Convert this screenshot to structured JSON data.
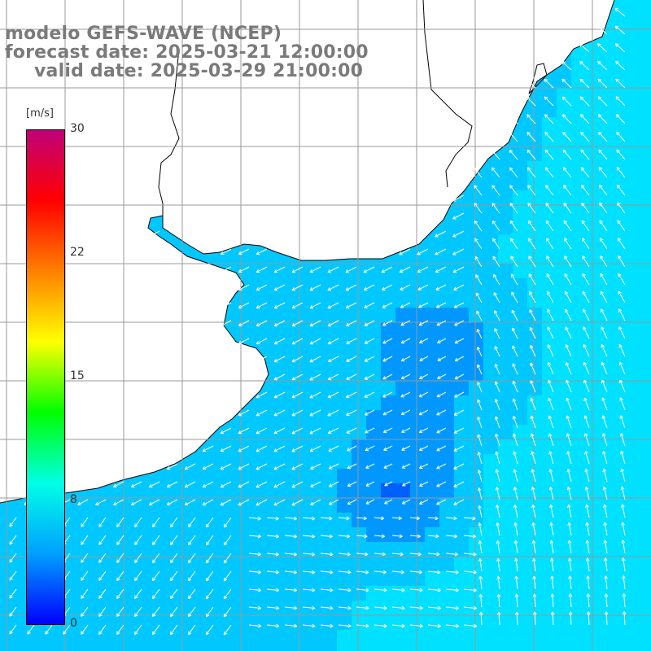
{
  "title": {
    "line1": "modelo GEFS-WAVE (NCEP)",
    "line2": "forecast date: 2025-03-21 12:00:00",
    "line3": "valid date: 2025-03-29 21:00:00"
  },
  "legend": {
    "unit": "[m/s]",
    "ticks": [
      "30",
      "22",
      "15",
      "8",
      "0"
    ],
    "tick_values": [
      30,
      22,
      15,
      8,
      0
    ],
    "range": [
      0,
      30
    ],
    "colors": [
      "#0000ff",
      "#00a0ff",
      "#00ffe6",
      "#00ff00",
      "#ffff00",
      "#ff8000",
      "#ff0000",
      "#c00078"
    ]
  },
  "map": {
    "land_color": "#ffffff",
    "grid_color": "#999999",
    "coast_color": "#000000",
    "arrow_color": "#ffffff",
    "field_colors": {
      "calm": "#0018ff",
      "low": "#0060ff",
      "mid": "#0098ff",
      "high": "#00c8ff",
      "max": "#00e0ff"
    }
  }
}
